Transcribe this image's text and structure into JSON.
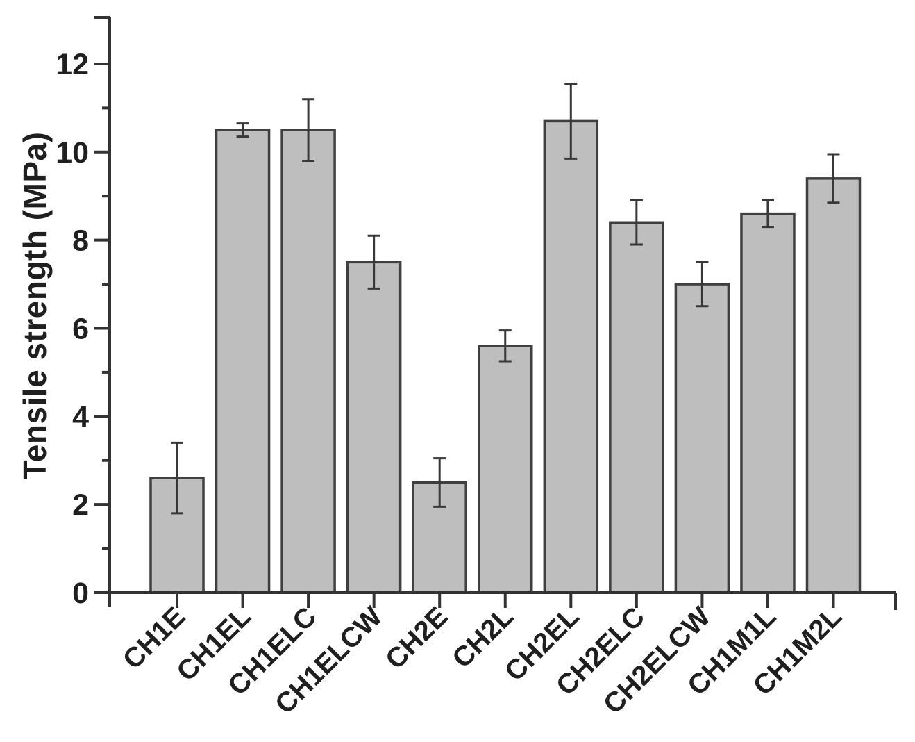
{
  "figure": {
    "background": "#ffffff"
  },
  "chart_data": {
    "type": "bar",
    "title": "",
    "xlabel": "",
    "ylabel": "Tensile strength (MPa)",
    "categories": [
      "CH1E",
      "CH1EL",
      "CH1ELC",
      "CH1ELCW",
      "CH2E",
      "CH2L",
      "CH2EL",
      "CH2ELC",
      "CH2ELCW",
      "CH1M1L",
      "CH1M2L"
    ],
    "values": [
      2.6,
      10.5,
      10.5,
      7.5,
      2.5,
      5.6,
      10.7,
      8.4,
      7.0,
      8.6,
      9.4
    ],
    "errors": [
      0.8,
      0.15,
      0.7,
      0.6,
      0.55,
      0.35,
      0.85,
      0.5,
      0.5,
      0.3,
      0.55
    ],
    "ylim": [
      0,
      13
    ],
    "yticks_major": [
      0,
      2,
      4,
      6,
      8,
      10,
      12
    ],
    "yticks_minor": [
      1,
      3,
      5,
      7,
      9,
      11
    ],
    "grid": false,
    "legend": null,
    "bar_fill": "#bebebe",
    "bar_stroke": "#3f3f3f",
    "error_color": "#383838",
    "axis_color": "#333333",
    "text_color": "#1f1f1f"
  }
}
